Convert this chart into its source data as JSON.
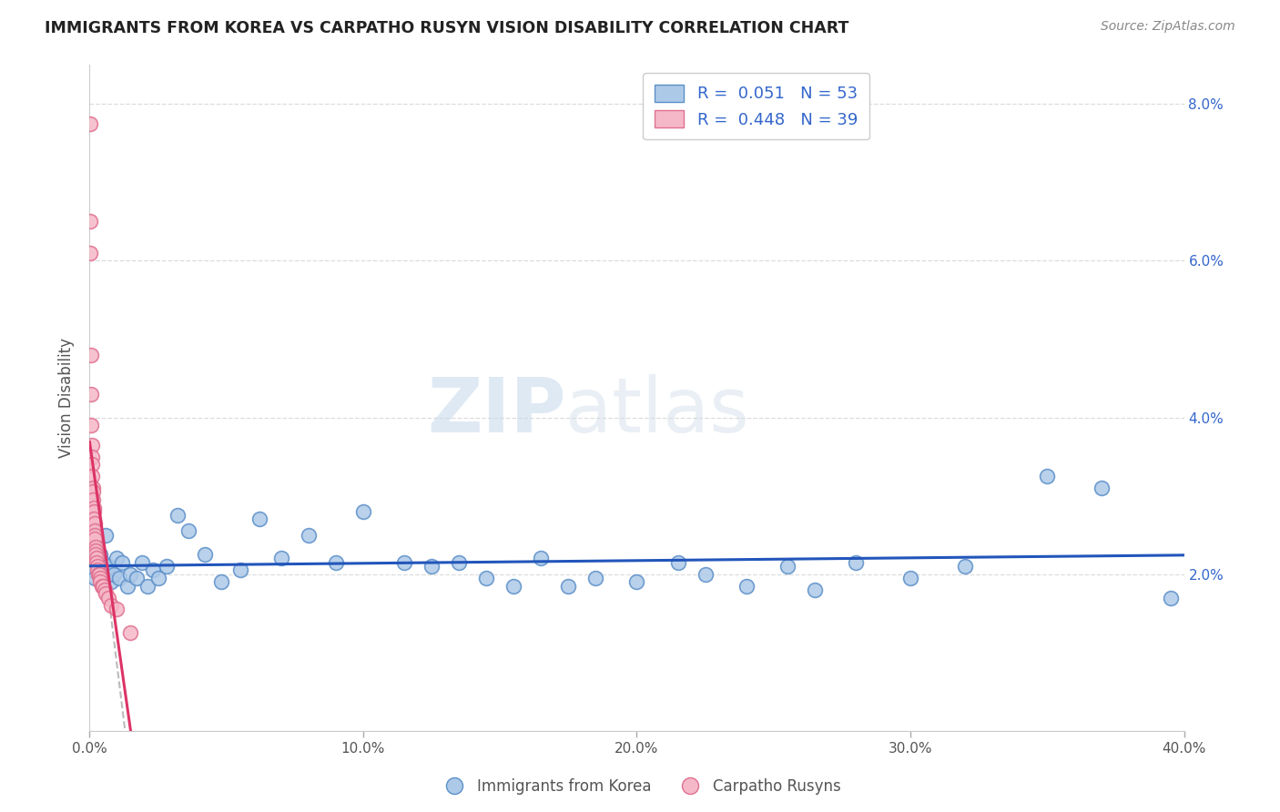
{
  "title": "IMMIGRANTS FROM KOREA VS CARPATHO RUSYN VISION DISABILITY CORRELATION CHART",
  "source": "Source: ZipAtlas.com",
  "ylabel": "Vision Disability",
  "xlim": [
    0.0,
    0.4
  ],
  "ylim": [
    0.0,
    0.085
  ],
  "xticks": [
    0.0,
    0.1,
    0.2,
    0.3,
    0.4
  ],
  "yticks": [
    0.0,
    0.02,
    0.04,
    0.06,
    0.08
  ],
  "xticklabels": [
    "0.0%",
    "10.0%",
    "20.0%",
    "30.0%",
    "40.0%"
  ],
  "yticklabels_right": [
    "",
    "2.0%",
    "4.0%",
    "6.0%",
    "8.0%"
  ],
  "korea_color": "#adc9e8",
  "korea_edge_color": "#5b8fc9",
  "rusyn_color": "#f5b8c8",
  "rusyn_edge_color": "#e07090",
  "trend_korea_color": "#2255bb",
  "trend_rusyn_color": "#dd3366",
  "legend_r_korea": "R =  0.051",
  "legend_n_korea": "N = 53",
  "legend_r_rusyn": "R =  0.448",
  "legend_n_rusyn": "N = 39",
  "korea_x": [
    0.001,
    0.002,
    0.002,
    0.003,
    0.004,
    0.004,
    0.005,
    0.005,
    0.006,
    0.007,
    0.008,
    0.009,
    0.01,
    0.011,
    0.012,
    0.014,
    0.015,
    0.017,
    0.019,
    0.021,
    0.023,
    0.025,
    0.028,
    0.032,
    0.036,
    0.042,
    0.048,
    0.055,
    0.062,
    0.07,
    0.08,
    0.09,
    0.1,
    0.115,
    0.125,
    0.135,
    0.145,
    0.155,
    0.165,
    0.175,
    0.185,
    0.2,
    0.215,
    0.225,
    0.24,
    0.255,
    0.265,
    0.28,
    0.3,
    0.32,
    0.35,
    0.37,
    0.395
  ],
  "korea_y": [
    0.0205,
    0.022,
    0.0195,
    0.0215,
    0.02,
    0.0225,
    0.0185,
    0.0215,
    0.025,
    0.021,
    0.019,
    0.02,
    0.022,
    0.0195,
    0.0215,
    0.0185,
    0.02,
    0.0195,
    0.0215,
    0.0185,
    0.0205,
    0.0195,
    0.021,
    0.0275,
    0.0255,
    0.0225,
    0.019,
    0.0205,
    0.027,
    0.022,
    0.025,
    0.0215,
    0.028,
    0.0215,
    0.021,
    0.0215,
    0.0195,
    0.0185,
    0.022,
    0.0185,
    0.0195,
    0.019,
    0.0215,
    0.02,
    0.0185,
    0.021,
    0.018,
    0.0215,
    0.0195,
    0.021,
    0.0325,
    0.031,
    0.017
  ],
  "rusyn_x": [
    0.0002,
    0.0002,
    0.0003,
    0.0005,
    0.0005,
    0.0006,
    0.0007,
    0.0008,
    0.0009,
    0.001,
    0.0011,
    0.0012,
    0.0013,
    0.0014,
    0.0015,
    0.0016,
    0.0017,
    0.0018,
    0.0019,
    0.002,
    0.0021,
    0.0022,
    0.0023,
    0.0025,
    0.0026,
    0.0028,
    0.003,
    0.0032,
    0.0035,
    0.0038,
    0.004,
    0.0045,
    0.005,
    0.0055,
    0.006,
    0.007,
    0.008,
    0.01,
    0.015
  ],
  "rusyn_y": [
    0.0775,
    0.065,
    0.061,
    0.048,
    0.043,
    0.039,
    0.0365,
    0.035,
    0.034,
    0.0325,
    0.031,
    0.0305,
    0.0295,
    0.0285,
    0.028,
    0.027,
    0.0265,
    0.0255,
    0.025,
    0.0245,
    0.0235,
    0.023,
    0.0225,
    0.022,
    0.0215,
    0.021,
    0.0205,
    0.02,
    0.02,
    0.0195,
    0.019,
    0.0185,
    0.0185,
    0.018,
    0.0175,
    0.017,
    0.016,
    0.0155,
    0.0125
  ],
  "watermark_zip": "ZIP",
  "watermark_atlas": "atlas",
  "background_color": "#ffffff",
  "grid_color": "#dddddd"
}
